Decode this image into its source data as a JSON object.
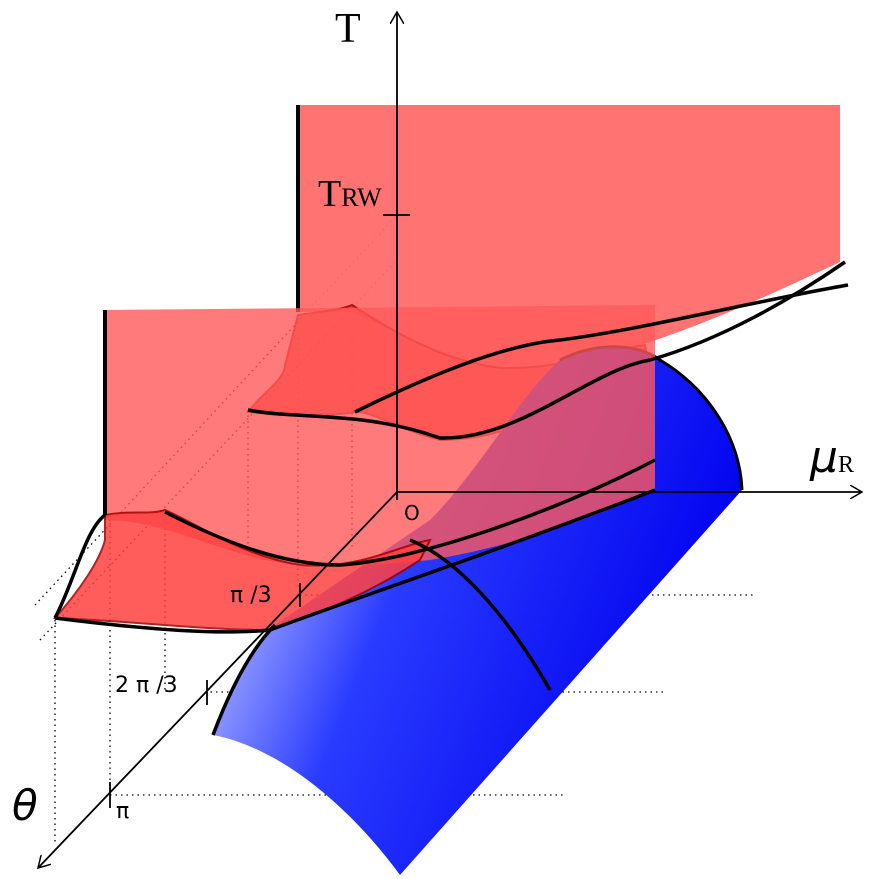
{
  "axes": {
    "temperature": {
      "main": "T"
    },
    "chemical_potential": {
      "main": "μ",
      "sub": "R"
    },
    "angle": {
      "main": "θ"
    },
    "origin": "O"
  },
  "temperature_mark": {
    "main": "T",
    "sub": "RW"
  },
  "angle_ticks": [
    "π /3",
    "2 π /3",
    "π"
  ]
}
